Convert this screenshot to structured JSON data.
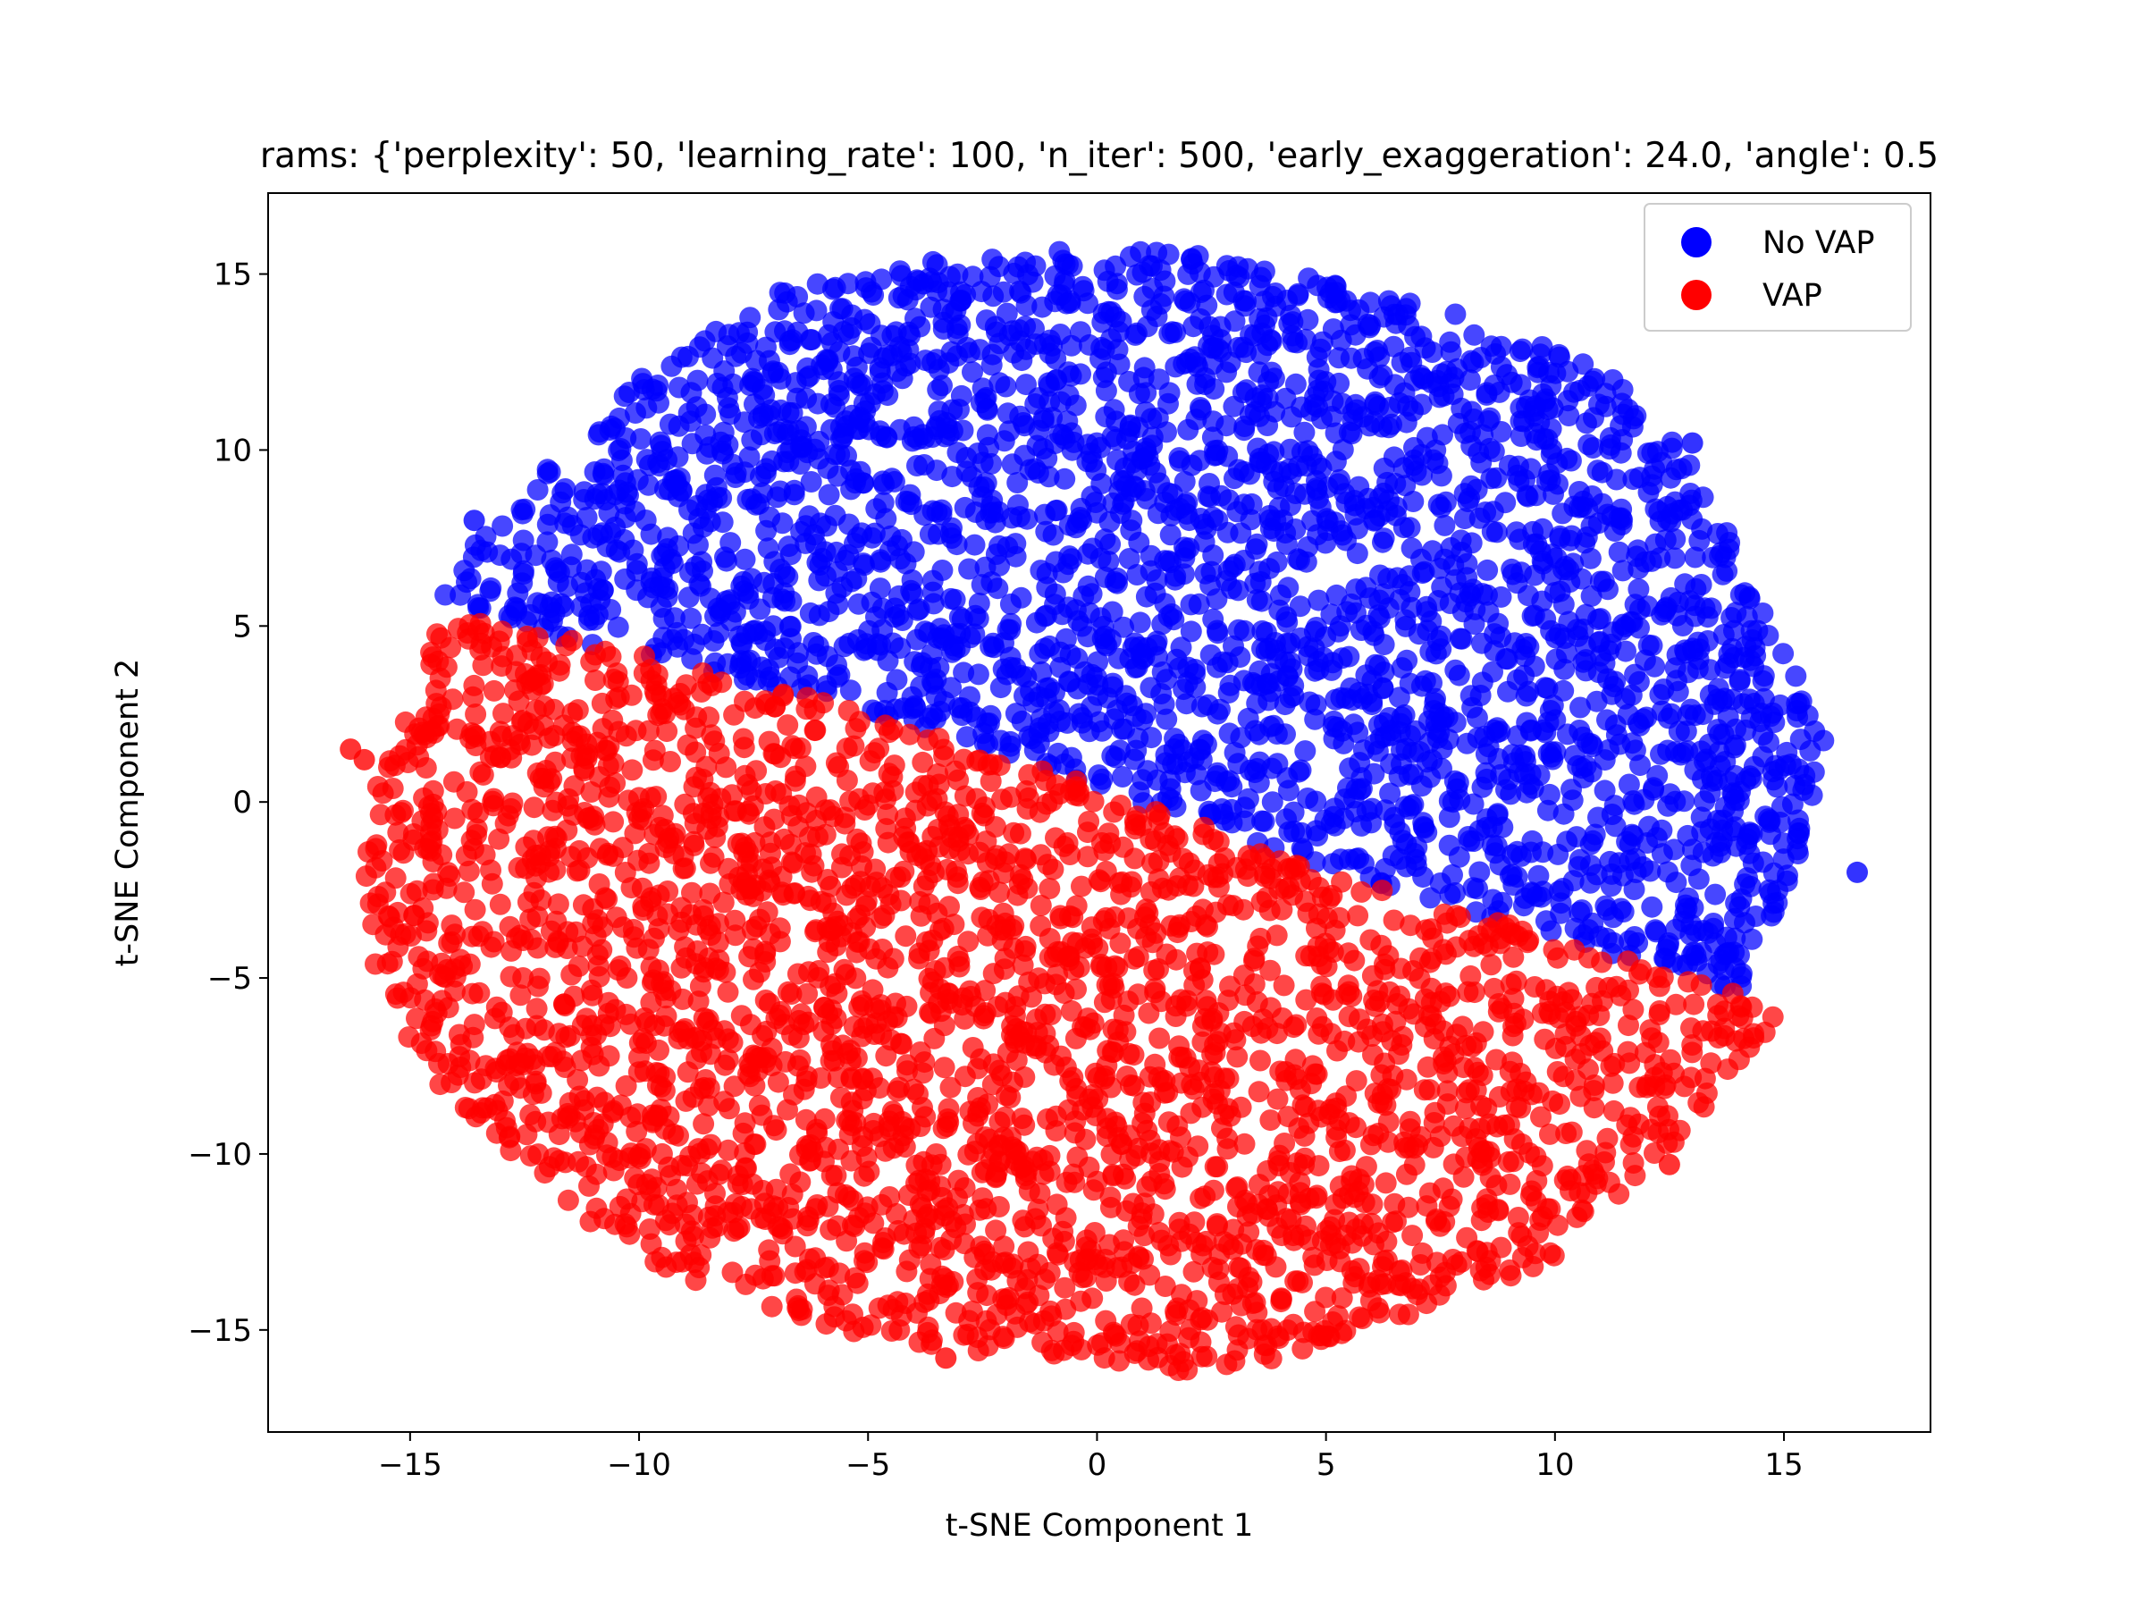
{
  "chart_data": {
    "type": "scatter",
    "title": "rams: {'perplexity': 50, 'learning_rate': 100, 'n_iter': 500, 'early_exaggeration': 24.0, 'angle': 0.5",
    "xlabel": "t-SNE Component 1",
    "ylabel": "t-SNE Component 2",
    "xlim": [
      -18.1,
      18.2
    ],
    "ylim": [
      -17.9,
      17.3
    ],
    "xticks": [
      -15,
      -10,
      -5,
      0,
      5,
      10,
      15
    ],
    "yticks": [
      -15,
      -10,
      -5,
      0,
      5,
      10,
      15
    ],
    "xtick_labels": [
      "−15",
      "−10",
      "−5",
      "0",
      "5",
      "10",
      "15"
    ],
    "ytick_labels": [
      "−15",
      "−10",
      "−5",
      "0",
      "5",
      "10",
      "15"
    ],
    "grid": false,
    "legend_position": "top-right",
    "series": [
      {
        "name": "No VAP",
        "color": "#0000ff",
        "region_outline": [
          [
            -14.4,
            5.8
          ],
          [
            -13.5,
            7.5
          ],
          [
            -12.0,
            9.5
          ],
          [
            -10.0,
            12.0
          ],
          [
            -7.0,
            14.5
          ],
          [
            -4.0,
            15.3
          ],
          [
            -1.0,
            15.7
          ],
          [
            2.0,
            15.6
          ],
          [
            5.0,
            15.0
          ],
          [
            8.0,
            14.0
          ],
          [
            10.0,
            13.0
          ],
          [
            12.0,
            11.5
          ],
          [
            13.5,
            8.5
          ],
          [
            14.5,
            5.5
          ],
          [
            15.3,
            3.5
          ],
          [
            16.0,
            1.5
          ],
          [
            15.5,
            -1.0
          ],
          [
            14.5,
            -4.0
          ],
          [
            14.0,
            -5.5
          ],
          [
            13.0,
            -5.0
          ],
          [
            9.0,
            -3.5
          ],
          [
            5.0,
            -1.9
          ],
          [
            0.0,
            0.4
          ],
          [
            -5.0,
            2.6
          ],
          [
            -10.0,
            4.2
          ],
          [
            -13.0,
            5.0
          ]
        ],
        "outliers": [
          [
            16.6,
            -2.0
          ],
          [
            13.0,
            10.2
          ],
          [
            -13.6,
            8.0
          ]
        ]
      },
      {
        "name": "VAP",
        "color": "#ff0000",
        "region_outline": [
          [
            -14.4,
            5.5
          ],
          [
            -13.0,
            5.0
          ],
          [
            -10.0,
            4.2
          ],
          [
            -5.0,
            2.6
          ],
          [
            0.0,
            0.4
          ],
          [
            5.0,
            -1.9
          ],
          [
            9.0,
            -3.5
          ],
          [
            13.0,
            -5.0
          ],
          [
            15.0,
            -5.8
          ],
          [
            14.0,
            -8.0
          ],
          [
            12.0,
            -10.5
          ],
          [
            10.0,
            -13.0
          ],
          [
            7.0,
            -14.5
          ],
          [
            4.0,
            -15.8
          ],
          [
            2.0,
            -16.3
          ],
          [
            -1.0,
            -15.8
          ],
          [
            -4.0,
            -15.5
          ],
          [
            -7.0,
            -14.5
          ],
          [
            -10.0,
            -13.0
          ],
          [
            -12.5,
            -10.5
          ],
          [
            -14.5,
            -8.0
          ],
          [
            -15.8,
            -5.0
          ],
          [
            -16.0,
            -2.0
          ],
          [
            -15.9,
            0.0
          ],
          [
            -15.0,
            3.0
          ]
        ],
        "outliers": [
          [
            -16.3,
            1.5
          ],
          [
            -16.0,
            1.2
          ],
          [
            12.5,
            -10.3
          ],
          [
            -3.3,
            -15.8
          ]
        ]
      }
    ]
  }
}
